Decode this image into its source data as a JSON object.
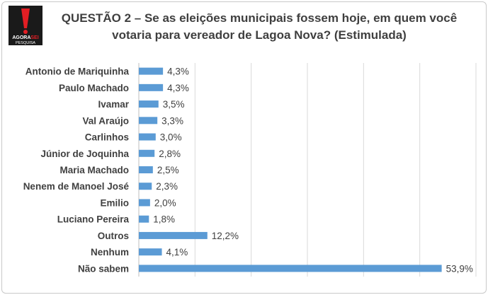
{
  "logo": {
    "brand_primary": "AGORA",
    "brand_secondary": "SEI",
    "brand_sub": "PESQUISA",
    "colors": {
      "background": "#1a1a1a",
      "accent": "#e31e24"
    }
  },
  "title": {
    "line1": "QUESTÃO 2 – Se as eleições municipais fossem hoje, em quem você",
    "line2": "votaria para vereador de Lagoa Nova? (Estimulada)"
  },
  "chart_data": {
    "type": "bar",
    "orientation": "horizontal",
    "categories": [
      "Antonio de Mariquinha",
      "Paulo Machado",
      "Ivamar",
      "Val Araújo",
      "Carlinhos",
      "Júnior de Joquinha",
      "Maria Machado",
      "Nenem de Manoel José",
      "Emilio",
      "Luciano Pereira",
      "Outros",
      "Nenhum",
      "Não sabem"
    ],
    "values": [
      4.3,
      4.3,
      3.5,
      3.3,
      3.0,
      2.8,
      2.5,
      2.3,
      2.0,
      1.8,
      12.2,
      4.1,
      53.9
    ],
    "value_labels": [
      "4,3%",
      "4,3%",
      "3,5%",
      "3,3%",
      "3,0%",
      "2,8%",
      "2,5%",
      "2,3%",
      "2,0%",
      "1,8%",
      "12,2%",
      "4,1%",
      "53,9%"
    ],
    "xlim": [
      0,
      60
    ],
    "grid": true,
    "bar_color": "#5b9bd5",
    "grid_color": "#d9d9d9"
  }
}
